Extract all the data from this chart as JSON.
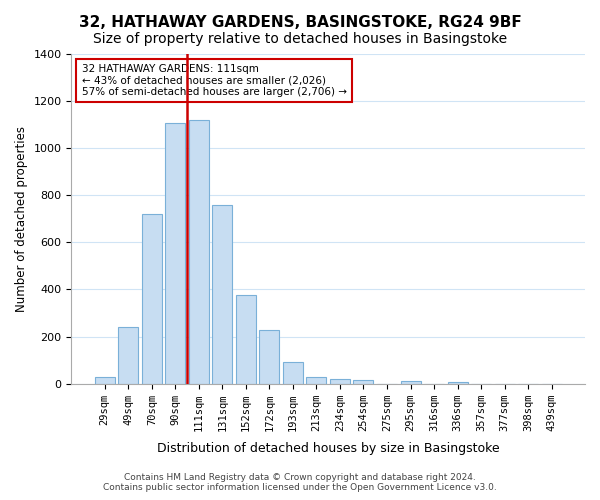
{
  "title_line1": "32, HATHAWAY GARDENS, BASINGSTOKE, RG24 9BF",
  "title_line2": "Size of property relative to detached houses in Basingstoke",
  "xlabel": "Distribution of detached houses by size in Basingstoke",
  "ylabel": "Number of detached properties",
  "bar_labels": [
    "29sqm",
    "49sqm",
    "70sqm",
    "90sqm",
    "111sqm",
    "131sqm",
    "152sqm",
    "172sqm",
    "193sqm",
    "213sqm",
    "234sqm",
    "254sqm",
    "275sqm",
    "295sqm",
    "316sqm",
    "336sqm",
    "357sqm",
    "377sqm",
    "398sqm",
    "439sqm"
  ],
  "bar_values": [
    30,
    240,
    720,
    1105,
    1120,
    760,
    375,
    230,
    90,
    30,
    20,
    15,
    0,
    10,
    0,
    5,
    0,
    0,
    0,
    0
  ],
  "bar_color": "#c7ddf2",
  "bar_edge_color": "#7ab0d8",
  "vline_x_index": 4,
  "vline_color": "#cc0000",
  "annotation_title": "32 HATHAWAY GARDENS: 111sqm",
  "annotation_line1": "← 43% of detached houses are smaller (2,026)",
  "annotation_line2": "57% of semi-detached houses are larger (2,706) →",
  "annotation_box_color": "#ffffff",
  "annotation_box_edge": "#cc0000",
  "ylim": [
    0,
    1400
  ],
  "yticks": [
    0,
    200,
    400,
    600,
    800,
    1000,
    1200,
    1400
  ],
  "footer_line1": "Contains HM Land Registry data © Crown copyright and database right 2024.",
  "footer_line2": "Contains public sector information licensed under the Open Government Licence v3.0.",
  "bg_color": "#ffffff",
  "grid_color": "#d0e4f5",
  "title_fontsize": 11,
  "subtitle_fontsize": 10
}
